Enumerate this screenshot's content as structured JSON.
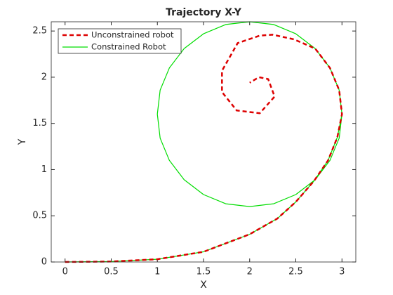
{
  "chart_data": {
    "type": "line",
    "title": "Trajectory X-Y",
    "xlabel": "X",
    "ylabel": "Y",
    "xlim": [
      -0.15,
      3.15
    ],
    "ylim": [
      0,
      2.6
    ],
    "xticks": [
      0,
      0.5,
      1,
      1.5,
      2,
      2.5,
      3
    ],
    "yticks": [
      0,
      0.5,
      1,
      1.5,
      2,
      2.5
    ],
    "legend": "upper-left",
    "series": [
      {
        "name": "Unconstrained robot",
        "color": "#dd0000",
        "dash": true,
        "x": [
          0,
          0.5,
          1,
          1.5,
          2,
          2.3,
          2.5,
          2.7,
          2.85,
          2.95,
          3.0,
          2.97,
          2.87,
          2.71,
          2.48,
          2.25,
          2.11,
          1.87,
          1.7,
          1.7,
          1.86,
          2.11,
          2.27,
          2.2,
          2.1,
          2.0
        ],
        "values": [
          0,
          0.005,
          0.03,
          0.11,
          0.3,
          0.47,
          0.65,
          0.88,
          1.1,
          1.35,
          1.6,
          1.86,
          2.1,
          2.31,
          2.41,
          2.46,
          2.45,
          2.37,
          2.07,
          1.84,
          1.64,
          1.61,
          1.79,
          1.98,
          2.0,
          1.94
        ]
      },
      {
        "name": "Constrained Robot",
        "color": "#00dd00",
        "dash": false,
        "x": [
          0,
          0.5,
          1,
          1.5,
          2,
          2.3,
          2.5,
          2.7,
          2.85,
          2.95,
          3.0,
          2.97,
          2.87,
          2.71,
          2.5,
          2.26,
          2.0,
          1.74,
          1.5,
          1.29,
          1.13,
          1.03,
          1.0,
          1.03,
          1.13,
          1.29,
          1.5,
          1.74,
          2.0,
          2.26,
          2.5,
          2.71,
          2.87,
          2.97,
          3.0
        ],
        "values": [
          0,
          0.005,
          0.03,
          0.11,
          0.3,
          0.47,
          0.65,
          0.88,
          1.1,
          1.35,
          1.6,
          1.86,
          2.1,
          2.31,
          2.47,
          2.57,
          2.6,
          2.57,
          2.47,
          2.31,
          2.1,
          1.86,
          1.6,
          1.34,
          1.1,
          0.89,
          0.73,
          0.63,
          0.6,
          0.63,
          0.73,
          0.89,
          1.1,
          1.34,
          1.6
        ]
      }
    ]
  }
}
